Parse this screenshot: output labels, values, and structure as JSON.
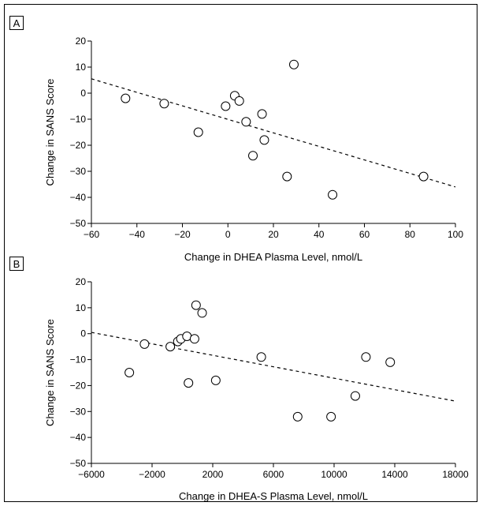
{
  "chart_data": [
    {
      "panel": "A",
      "type": "scatter",
      "xlabel": "Change in DHEA Plasma Level, nmol/L",
      "ylabel": "Change in SANS Score",
      "xlim": [
        -60,
        100
      ],
      "ylim": [
        -50,
        20
      ],
      "xticks": [
        -60,
        -40,
        -20,
        0,
        20,
        40,
        60,
        80,
        100
      ],
      "yticks": [
        -50,
        -40,
        -30,
        -20,
        -10,
        0,
        10,
        20
      ],
      "points": [
        {
          "x": -45,
          "y": -2
        },
        {
          "x": -28,
          "y": -4
        },
        {
          "x": -13,
          "y": -15
        },
        {
          "x": -1,
          "y": -5
        },
        {
          "x": 3,
          "y": -1
        },
        {
          "x": 5,
          "y": -3
        },
        {
          "x": 8,
          "y": -11
        },
        {
          "x": 11,
          "y": -24
        },
        {
          "x": 15,
          "y": -8
        },
        {
          "x": 16,
          "y": -18
        },
        {
          "x": 26,
          "y": -32
        },
        {
          "x": 29,
          "y": 11
        },
        {
          "x": 46,
          "y": -39
        },
        {
          "x": 86,
          "y": -32
        }
      ],
      "trendline": {
        "x1": -60,
        "y1": 5.5,
        "x2": 100,
        "y2": -36
      }
    },
    {
      "panel": "B",
      "type": "scatter",
      "xlabel": "Change in DHEA-S Plasma Level, nmol/L",
      "ylabel": "Change in SANS Score",
      "xlim": [
        -6000,
        18000
      ],
      "ylim": [
        -50,
        20
      ],
      "xticks": [
        -6000,
        -2000,
        2000,
        6000,
        10000,
        14000,
        18000
      ],
      "yticks": [
        -50,
        -40,
        -30,
        -20,
        -10,
        0,
        10,
        20
      ],
      "points": [
        {
          "x": -3500,
          "y": -15
        },
        {
          "x": -2500,
          "y": -4
        },
        {
          "x": -800,
          "y": -5
        },
        {
          "x": -300,
          "y": -3
        },
        {
          "x": -100,
          "y": -2
        },
        {
          "x": 300,
          "y": -1
        },
        {
          "x": 400,
          "y": -19
        },
        {
          "x": 800,
          "y": -2
        },
        {
          "x": 900,
          "y": 11
        },
        {
          "x": 1300,
          "y": 8
        },
        {
          "x": 2200,
          "y": -18
        },
        {
          "x": 5200,
          "y": -9
        },
        {
          "x": 7600,
          "y": -32
        },
        {
          "x": 9800,
          "y": -32
        },
        {
          "x": 11400,
          "y": -24
        },
        {
          "x": 12100,
          "y": -9
        },
        {
          "x": 13700,
          "y": -11
        }
      ],
      "trendline": {
        "x1": -6000,
        "y1": 0.5,
        "x2": 18000,
        "y2": -26
      }
    }
  ]
}
